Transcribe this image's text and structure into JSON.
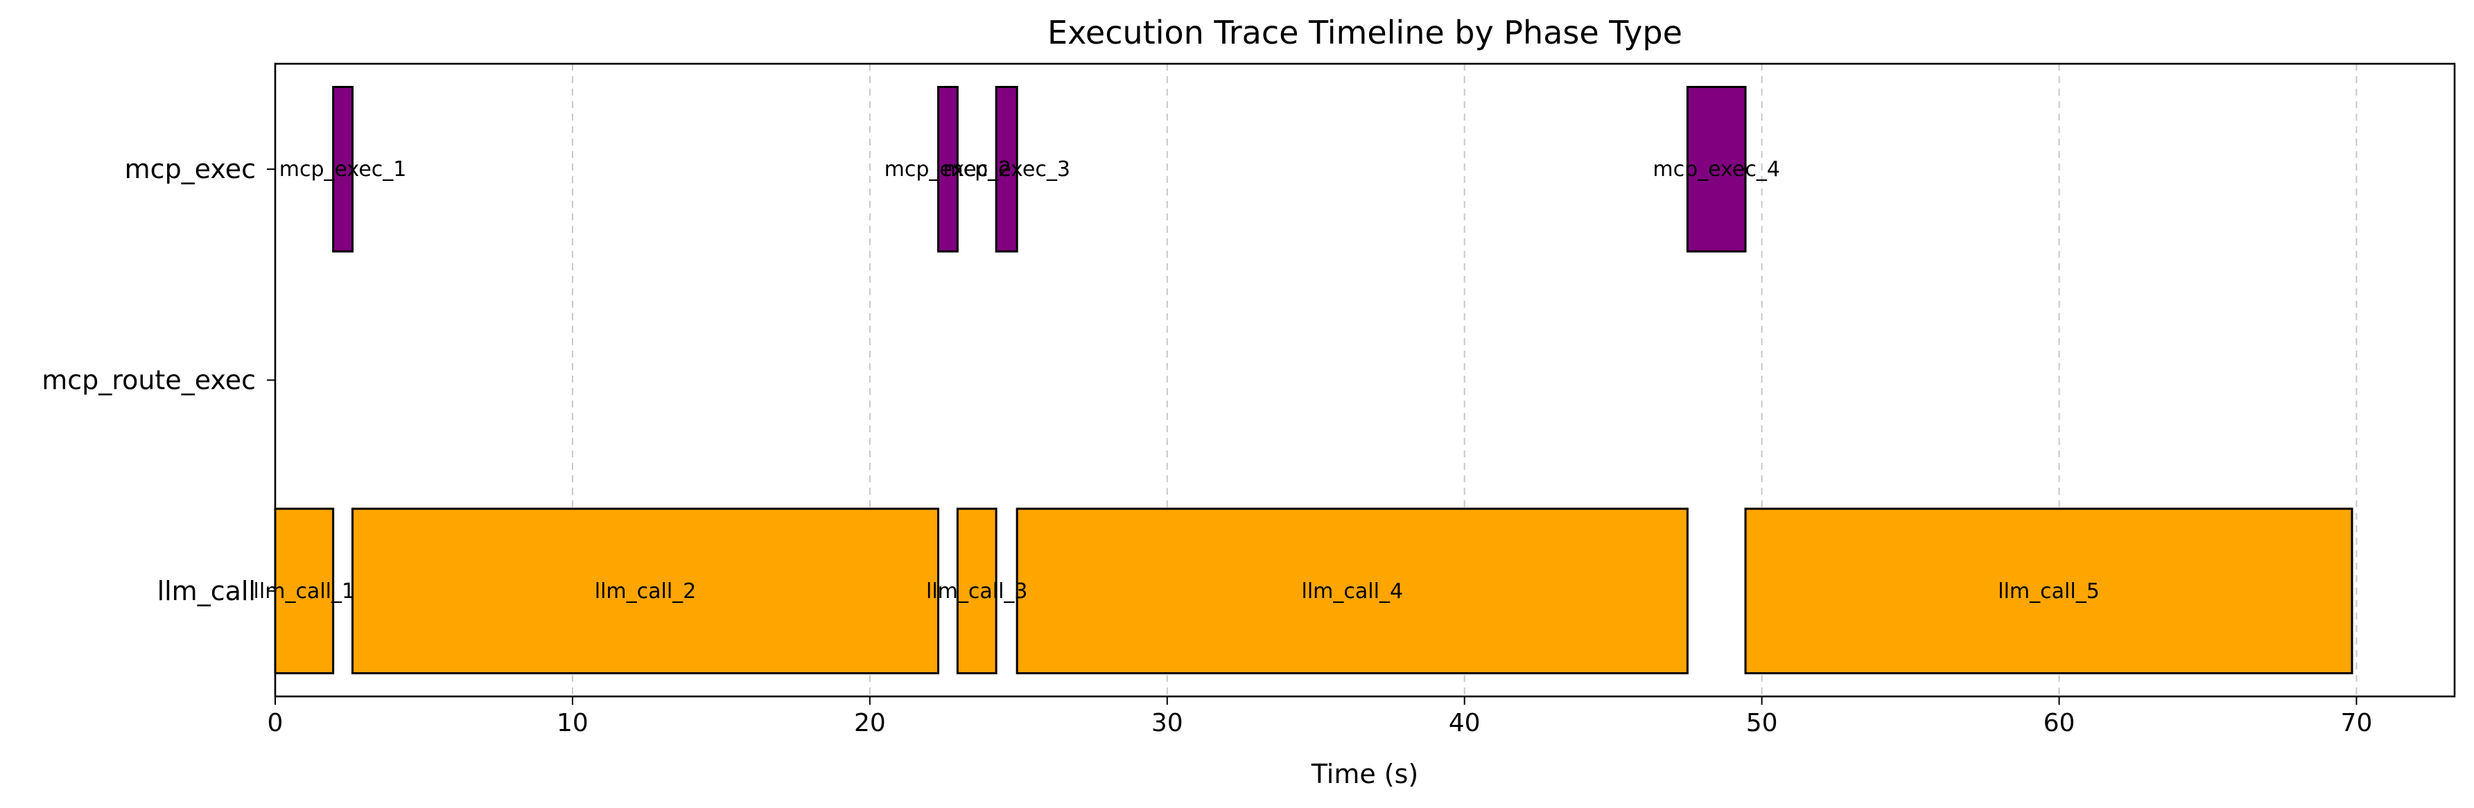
{
  "chart_data": {
    "type": "gantt",
    "title": "Execution Trace Timeline by Phase Type",
    "xlabel": "Time (s)",
    "ylabel": "",
    "xlim": [
      0,
      73.3
    ],
    "xticks": [
      0,
      10,
      20,
      30,
      40,
      50,
      60,
      70
    ],
    "grid": "x-dashed",
    "legend": "none",
    "categories": [
      "mcp_exec",
      "mcp_route_exec",
      "llm_call"
    ],
    "colors": {
      "llm_call": "#FFA500",
      "mcp_exec": "#800080",
      "mcp_route_exec": "#4A90D9"
    },
    "segments": [
      {
        "label": "llm_call_1",
        "category": "llm_call",
        "start": 0.0,
        "end": 1.95
      },
      {
        "label": "mcp_exec_1",
        "category": "mcp_exec",
        "start": 1.95,
        "end": 2.6
      },
      {
        "label": "llm_call_2",
        "category": "llm_call",
        "start": 2.6,
        "end": 22.3
      },
      {
        "label": "mcp_exec_2",
        "category": "mcp_exec",
        "start": 22.3,
        "end": 22.95
      },
      {
        "label": "llm_call_3",
        "category": "llm_call",
        "start": 22.95,
        "end": 24.25
      },
      {
        "label": "mcp_exec_3",
        "category": "mcp_exec",
        "start": 24.25,
        "end": 24.95
      },
      {
        "label": "llm_call_4",
        "category": "llm_call",
        "start": 24.95,
        "end": 47.5
      },
      {
        "label": "mcp_exec_4",
        "category": "mcp_exec",
        "start": 47.5,
        "end": 49.45
      },
      {
        "label": "llm_call_5",
        "category": "llm_call",
        "start": 49.45,
        "end": 69.85
      }
    ]
  }
}
